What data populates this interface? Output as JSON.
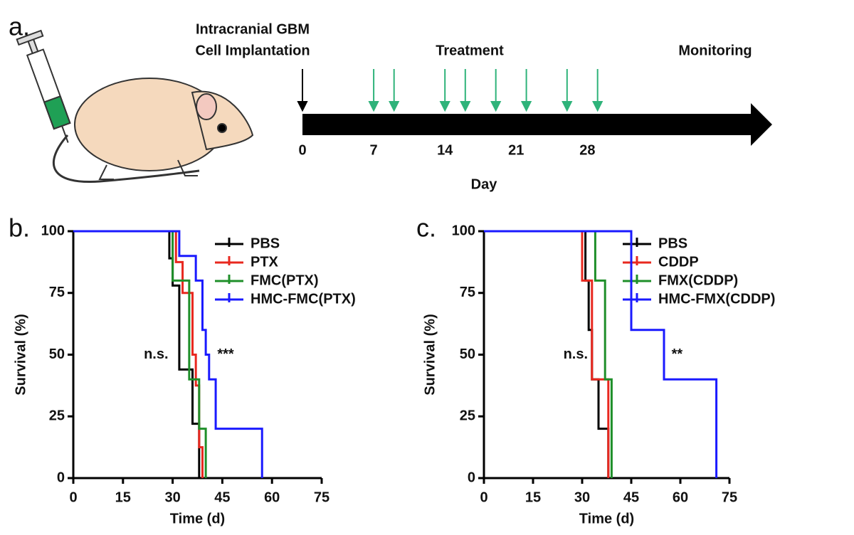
{
  "panel_a": {
    "panel_label": "a.",
    "implantation_label": [
      "Intracranial GBM",
      "Cell Implantation"
    ],
    "treatment_label": "Treatment",
    "monitoring_label": "Monitoring",
    "axis_label": "Day",
    "ticks": [
      0,
      7,
      14,
      21,
      28
    ],
    "implantation_day": 0,
    "treatment_days": [
      7,
      9,
      14,
      16,
      19,
      22,
      26,
      29
    ],
    "treatment_color": "#2fb37a"
  },
  "chart_data": [
    {
      "type": "step",
      "panel_label": "b.",
      "xlabel": "Time (d)",
      "ylabel": "Survival (%)",
      "xlim": [
        0,
        75
      ],
      "xticks": [
        0,
        15,
        30,
        45,
        60,
        75
      ],
      "ylim": [
        0,
        100
      ],
      "yticks": [
        0,
        25,
        50,
        75,
        100
      ],
      "legend": "upper right",
      "series": [
        {
          "name": "PBS",
          "color": "#000000",
          "x": [
            0,
            29,
            30,
            32,
            36,
            38
          ],
          "values": [
            100,
            89,
            78,
            44,
            22,
            0
          ]
        },
        {
          "name": "PTX",
          "color": "#e8281f",
          "x": [
            0,
            31,
            33,
            36,
            37,
            38,
            39
          ],
          "values": [
            100,
            87.5,
            75,
            50,
            37.5,
            12.5,
            0
          ]
        },
        {
          "name": "FMC(PTX)",
          "color": "#1f8f2a",
          "x": [
            0,
            30,
            35,
            38,
            40
          ],
          "values": [
            100,
            80,
            40,
            20,
            0
          ]
        },
        {
          "name": "HMC-FMC(PTX)",
          "color": "#1a1aff",
          "x": [
            0,
            32,
            37,
            39,
            40,
            41,
            43,
            57
          ],
          "values": [
            100,
            90,
            80,
            60,
            50,
            40,
            20,
            0
          ]
        }
      ],
      "annotations": [
        {
          "text": "n.s.",
          "x": 25,
          "y": 50
        },
        {
          "text": "***",
          "x": 46,
          "y": 50
        }
      ]
    },
    {
      "type": "step",
      "panel_label": "c.",
      "xlabel": "Time (d)",
      "ylabel": "Survival (%)",
      "xlim": [
        0,
        75
      ],
      "xticks": [
        0,
        15,
        30,
        45,
        60,
        75
      ],
      "ylim": [
        0,
        100
      ],
      "yticks": [
        0,
        25,
        50,
        75,
        100
      ],
      "legend": "upper right",
      "series": [
        {
          "name": "PBS",
          "color": "#000000",
          "x": [
            0,
            31,
            32,
            33,
            35,
            38
          ],
          "values": [
            100,
            80,
            60,
            40,
            20,
            0
          ]
        },
        {
          "name": "CDDP",
          "color": "#e8281f",
          "x": [
            0,
            30,
            33,
            38
          ],
          "values": [
            100,
            80,
            40,
            0
          ]
        },
        {
          "name": "FMX(CDDP)",
          "color": "#1f8f2a",
          "x": [
            0,
            34,
            37,
            39
          ],
          "values": [
            100,
            80,
            40,
            0
          ]
        },
        {
          "name": "HMC-FMX(CDDP)",
          "color": "#1a1aff",
          "x": [
            0,
            45,
            55,
            71
          ],
          "values": [
            100,
            60,
            40,
            0
          ]
        }
      ],
      "annotations": [
        {
          "text": "n.s.",
          "x": 28,
          "y": 50
        },
        {
          "text": "**",
          "x": 59,
          "y": 50
        }
      ]
    }
  ]
}
